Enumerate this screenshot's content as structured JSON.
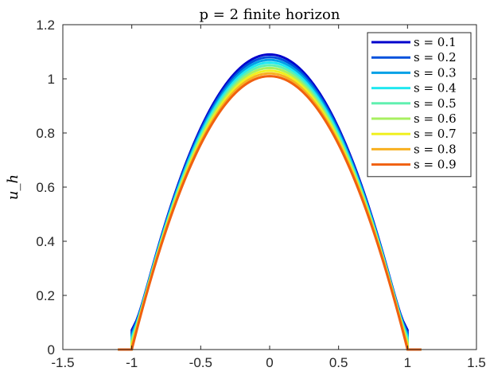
{
  "chart_data": {
    "type": "line",
    "title": "p = 2 finite horizon",
    "xlabel": "",
    "ylabel": "u_h",
    "xlim": [
      -1.5,
      1.5
    ],
    "ylim": [
      0,
      1.2
    ],
    "xticks": [
      -1.5,
      -1,
      -0.5,
      0,
      0.5,
      1,
      1.5
    ],
    "xtick_labels": [
      "-1.5",
      "-1",
      "-0.5",
      "0",
      "0.5",
      "1",
      "1.5"
    ],
    "yticks": [
      0,
      0.2,
      0.4,
      0.6,
      0.8,
      1,
      1.2
    ],
    "ytick_labels": [
      "0",
      "0.2",
      "0.4",
      "0.6",
      "0.8",
      "1",
      "1.2"
    ],
    "grid": false,
    "legend_position": "top-right",
    "series": [
      {
        "name": "s = 0.1",
        "color": "#0000CC",
        "peak": 1.09,
        "edge_jump": 0.08,
        "edge_tail": 1.1
      },
      {
        "name": "s = 0.2",
        "color": "#0050DC",
        "peak": 1.08,
        "edge_jump": 0.07,
        "edge_tail": 1.1
      },
      {
        "name": "s = 0.3",
        "color": "#00A0E6",
        "peak": 1.07,
        "edge_jump": 0.06,
        "edge_tail": 1.1
      },
      {
        "name": "s = 0.4",
        "color": "#20E8F0",
        "peak": 1.06,
        "edge_jump": 0.05,
        "edge_tail": 1.1
      },
      {
        "name": "s = 0.5",
        "color": "#60F0B0",
        "peak": 1.05,
        "edge_jump": 0.04,
        "edge_tail": 1.1
      },
      {
        "name": "s = 0.6",
        "color": "#A8F060",
        "peak": 1.04,
        "edge_jump": 0.03,
        "edge_tail": 1.1
      },
      {
        "name": "s = 0.7",
        "color": "#F0F020",
        "peak": 1.03,
        "edge_jump": 0.02,
        "edge_tail": 1.1
      },
      {
        "name": "s = 0.8",
        "color": "#F8B020",
        "peak": 1.02,
        "edge_jump": 0.01,
        "edge_tail": 1.1
      },
      {
        "name": "s = 0.9",
        "color": "#F06010",
        "peak": 1.01,
        "edge_jump": 0.0,
        "edge_tail": 1.1
      }
    ]
  }
}
